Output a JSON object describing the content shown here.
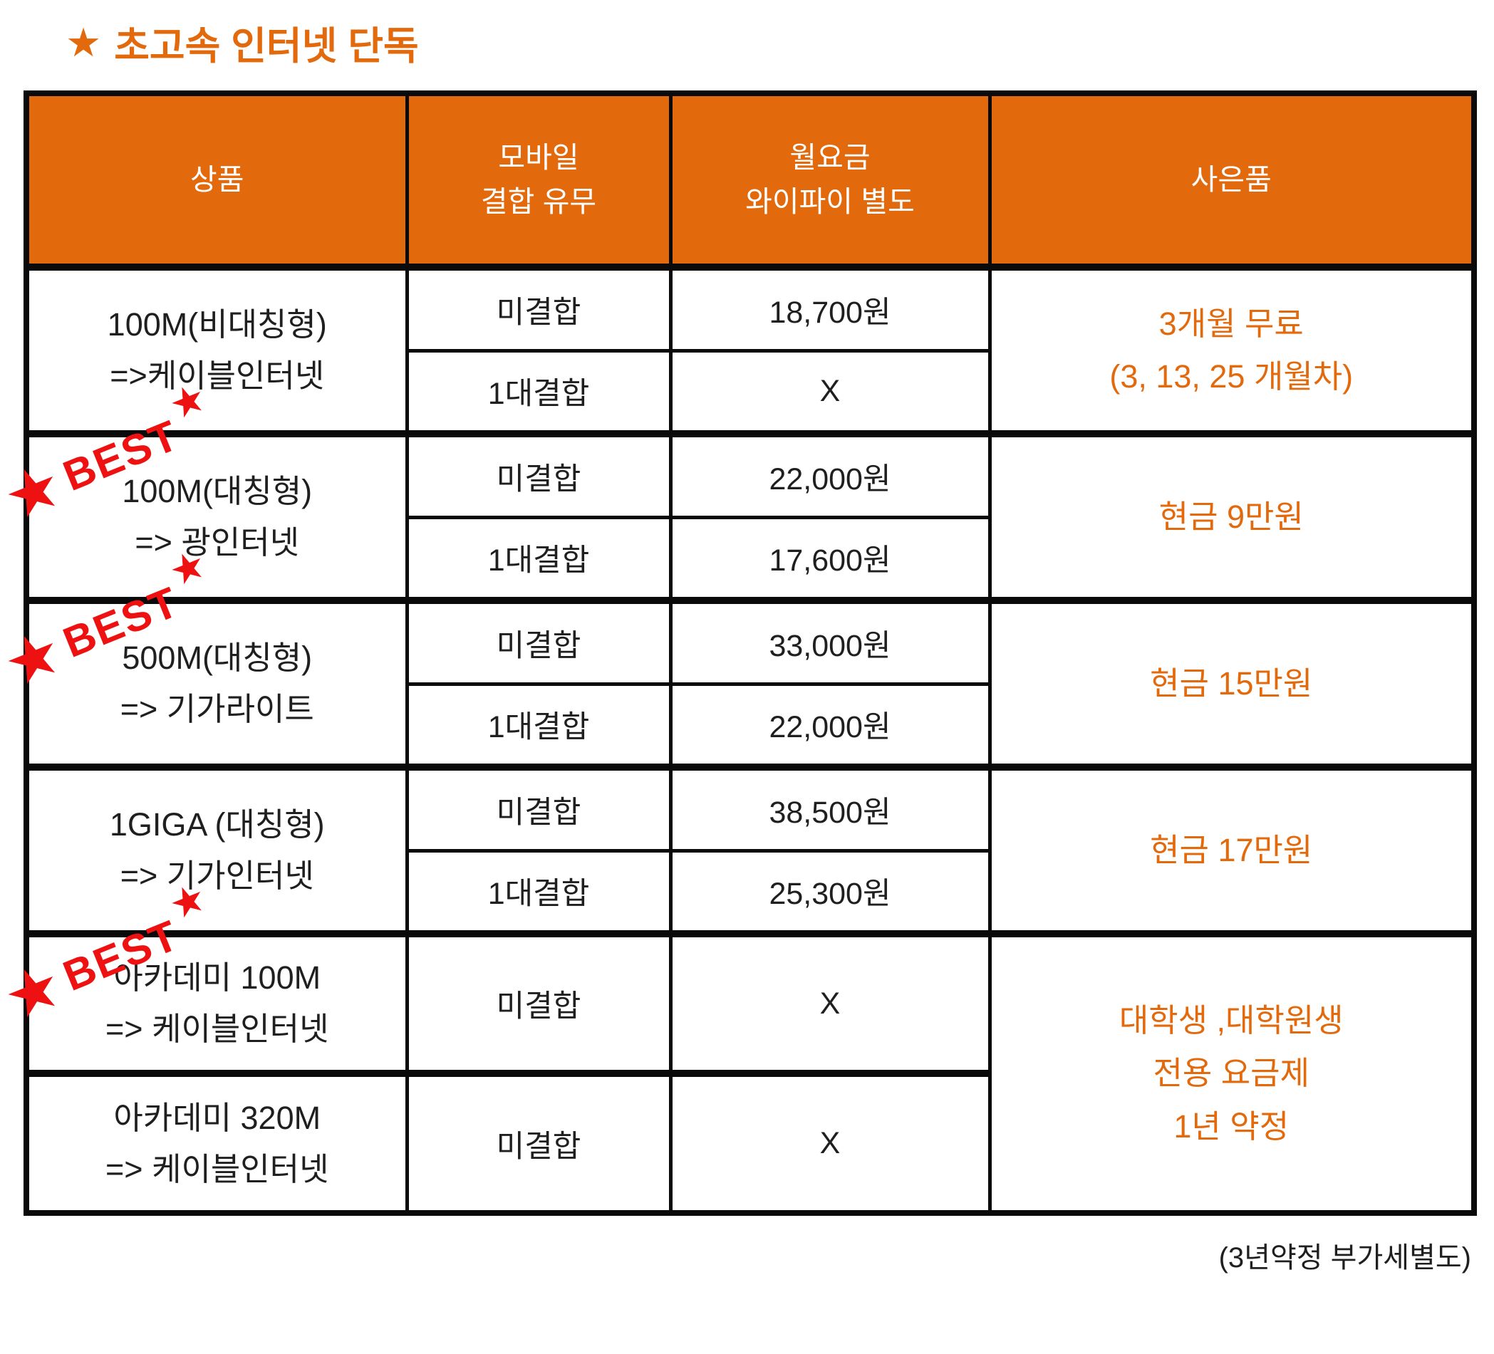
{
  "page": {
    "background": "#ffffff"
  },
  "title": {
    "star": "★",
    "text": "초고속 인터넷 단독",
    "color": "#e2690c"
  },
  "table": {
    "header_bg": "#e2690c",
    "header_text_color": "#ffffff",
    "border_color": "#0a0a0a",
    "text_color": "#1f1f1f",
    "gift_color": "#e2690c",
    "headers": [
      "상품",
      "모바일\n결합 유무",
      "월요금\n와이파이 별도",
      "사은품"
    ],
    "groups": [
      {
        "best": false,
        "product": "100M(비대칭형)\n=>케이블인터넷",
        "rows": [
          {
            "mobile": "미결합",
            "fee": "18,700원"
          },
          {
            "mobile": "1대결합",
            "fee": "X"
          }
        ],
        "gift": "3개월 무료\n(3, 13, 25 개월차)",
        "gift_rowspan": 2,
        "tall": false
      },
      {
        "best": true,
        "product": "100M(대칭형)\n=> 광인터넷",
        "rows": [
          {
            "mobile": "미결합",
            "fee": "22,000원"
          },
          {
            "mobile": "1대결합",
            "fee": "17,600원"
          }
        ],
        "gift": "현금 9만원",
        "gift_rowspan": 2,
        "tall": false
      },
      {
        "best": true,
        "product": "500M(대칭형)\n=> 기가라이트",
        "rows": [
          {
            "mobile": "미결합",
            "fee": "33,000원"
          },
          {
            "mobile": "1대결합",
            "fee": "22,000원"
          }
        ],
        "gift": "현금 15만원",
        "gift_rowspan": 2,
        "tall": false
      },
      {
        "best": false,
        "product": "1GIGA (대칭형)\n=> 기가인터넷",
        "rows": [
          {
            "mobile": "미결합",
            "fee": "38,500원"
          },
          {
            "mobile": "1대결합",
            "fee": "25,300원"
          }
        ],
        "gift": "현금 17만원",
        "gift_rowspan": 2,
        "tall": false
      },
      {
        "best": true,
        "product": "아카데미 100M\n=> 케이블인터넷",
        "rows": [
          {
            "mobile": "미결합",
            "fee": "X"
          }
        ],
        "gift": "대학생 ,대학원생\n전용 요금제\n1년 약정",
        "gift_rowspan": 2,
        "tall": true
      },
      {
        "best": false,
        "product": "아카데미 320M\n=> 케이블인터넷",
        "rows": [
          {
            "mobile": "미결합",
            "fee": "X"
          }
        ],
        "gift": null,
        "tall": true
      }
    ]
  },
  "best_stamp": {
    "label": "BEST",
    "star": "★",
    "color": "#ee1111"
  },
  "footer": {
    "note": "(3년약정 부가세별도)"
  }
}
